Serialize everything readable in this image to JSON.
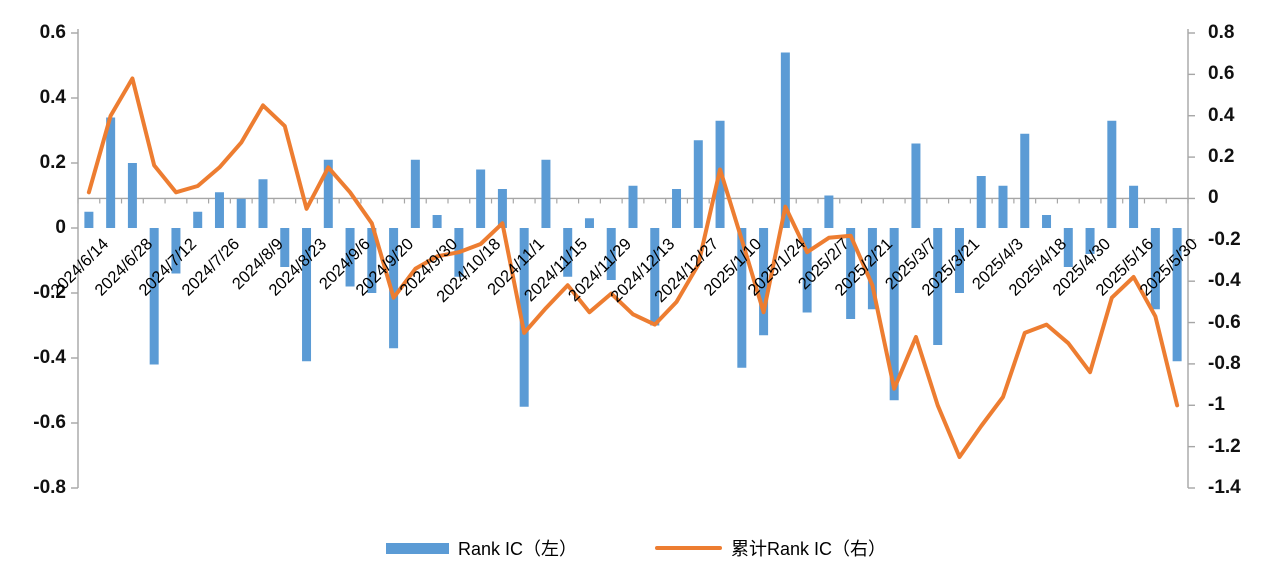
{
  "chart_data": {
    "type": "bar",
    "subtype": "combo-bar-line-dual-axis",
    "title": "",
    "categories": [
      "2024/6/14",
      "2024/6/28",
      "2024/7/12",
      "2024/7/26",
      "2024/8/9",
      "2024/8/23",
      "2024/9/6",
      "2024/9/20",
      "2024/9/30",
      "2024/10/18",
      "2024/11/1",
      "2024/11/15",
      "2024/11/29",
      "2024/12/13",
      "2024/12/27",
      "2025/1/10",
      "2025/1/24",
      "2025/2/7",
      "2025/2/21",
      "2025/3/7",
      "2025/3/21",
      "2025/4/3",
      "2025/4/18",
      "2025/4/30",
      "2025/5/16",
      "2025/5/30"
    ],
    "tick_label_every_n_bars": 2,
    "series": [
      {
        "name": "Rank IC（左）",
        "type": "bar",
        "axis": "left",
        "values": [
          0.05,
          0.34,
          0.2,
          -0.42,
          -0.14,
          0.05,
          0.11,
          0.09,
          0.15,
          -0.12,
          -0.41,
          0.21,
          -0.18,
          -0.2,
          -0.37,
          0.21,
          0.04,
          -0.15,
          0.18,
          0.12,
          -0.55,
          0.21,
          -0.15,
          0.03,
          -0.16,
          0.13,
          -0.3,
          0.12,
          0.27,
          0.33,
          -0.43,
          -0.33,
          0.54,
          -0.26,
          0.1,
          -0.28,
          -0.25,
          -0.53,
          0.26,
          -0.36,
          -0.2,
          0.16,
          0.13,
          0.29,
          0.04,
          -0.12,
          -0.08,
          0.33,
          0.13,
          -0.25,
          -0.41
        ]
      },
      {
        "name": "累计Rank IC（右）",
        "type": "line",
        "axis": "right",
        "values": [
          0.03,
          0.4,
          0.58,
          0.16,
          0.03,
          0.06,
          0.15,
          0.27,
          0.45,
          0.35,
          -0.05,
          0.15,
          0.03,
          -0.12,
          -0.48,
          -0.34,
          -0.28,
          -0.26,
          -0.22,
          -0.12,
          -0.65,
          -0.53,
          -0.42,
          -0.55,
          -0.46,
          -0.56,
          -0.61,
          -0.5,
          -0.32,
          0.14,
          -0.2,
          -0.55,
          -0.04,
          -0.26,
          -0.19,
          -0.18,
          -0.42,
          -0.92,
          -0.67,
          -1.0,
          -1.25,
          -1.1,
          -0.96,
          -0.65,
          -0.61,
          -0.7,
          -0.84,
          -0.48,
          -0.38,
          -0.57,
          -1.0
        ]
      }
    ],
    "left_axis": {
      "ticks": [
        "0.6",
        "0.4",
        "0.2",
        "0",
        "-0.2",
        "-0.4",
        "-0.6",
        "-0.8"
      ],
      "max": 0.6,
      "min": -0.8
    },
    "right_axis": {
      "ticks": [
        "0.8",
        "0.6",
        "0.4",
        "0.2",
        "0",
        "-0.2",
        "-0.4",
        "-0.6",
        "-0.8",
        "-1",
        "-1.2",
        "-1.4"
      ],
      "max": 0.8,
      "min": -1.4
    },
    "grid": "none",
    "legend_position": "bottom",
    "colors": {
      "bar": "#5B9BD5",
      "line": "#ED7D31",
      "axis": "#A6A6A6",
      "text": "#000000"
    }
  },
  "legend": {
    "bar_label": "Rank IC（左）",
    "line_label": "累计Rank IC（右）"
  }
}
